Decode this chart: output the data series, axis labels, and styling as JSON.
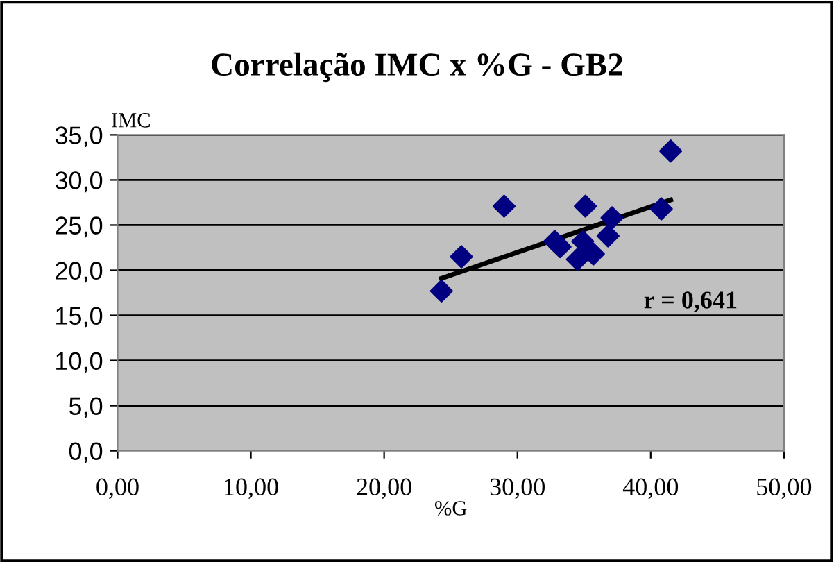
{
  "chart_data": {
    "type": "scatter",
    "title": "Correlação IMC x %G - GB2",
    "xlabel": "%G",
    "ylabel": "IMC",
    "series": [
      {
        "color": "#000080",
        "marker": "diamond",
        "x": [
          24.3,
          25.8,
          29.0,
          32.8,
          33.2,
          35.1,
          34.9,
          34.5,
          35.7,
          37.1,
          36.8,
          40.8,
          41.5
        ],
        "values": [
          17.7,
          21.5,
          27.1,
          23.2,
          22.6,
          27.1,
          23.2,
          21.2,
          21.8,
          25.8,
          23.8,
          26.8,
          33.2
        ]
      },
      {
        "type": "line",
        "color": "#000000",
        "marker": "none",
        "line_style": "solid",
        "x": [
          24.3,
          41.5
        ],
        "values": [
          19.1,
          27.8
        ]
      }
    ],
    "annotations": [
      "r = 0,641"
    ],
    "xlim": [
      0,
      50
    ],
    "ylim": [
      0,
      35
    ],
    "xticks": [
      {
        "value": 0,
        "label": "0,00"
      },
      {
        "value": 10,
        "label": "10,00"
      },
      {
        "value": 20,
        "label": "20,00"
      },
      {
        "value": 30,
        "label": "30,00"
      },
      {
        "value": 40,
        "label": "40,00"
      },
      {
        "value": 50,
        "label": "50,00"
      }
    ],
    "yticks": [
      {
        "value": 0,
        "label": "0,0"
      },
      {
        "value": 5,
        "label": "5,0"
      },
      {
        "value": 10,
        "label": "10,0"
      },
      {
        "value": 15,
        "label": "15,0"
      },
      {
        "value": 20,
        "label": "20,0"
      },
      {
        "value": 25,
        "label": "25,0"
      },
      {
        "value": 30,
        "label": "30,0"
      },
      {
        "value": 35,
        "label": "35,0"
      }
    ],
    "grid": "y",
    "legend": false
  }
}
